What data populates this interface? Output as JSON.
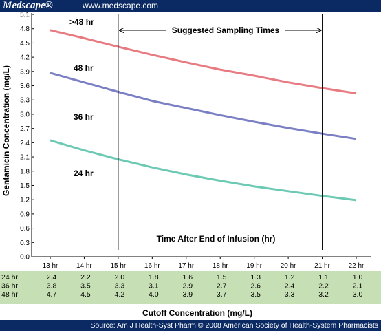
{
  "header": {
    "logo": "Medscape®",
    "site": "www.medscape.com"
  },
  "footer": {
    "source": "Source: Am J Health-Syst Pharm © 2008 American Society of Health-System Pharmacists"
  },
  "colors": {
    "header_bg": "#0b2a63",
    "table_bg": "#c7dfb4"
  },
  "chart_data": {
    "type": "line",
    "ylabel": "Gentamicin Concentration (mg/L)",
    "xlabel": "Cutoff Concentration (mg/L)",
    "inner_label": "Time After End of Infusion (hr)",
    "annotation": "Suggested Sampling Times",
    "sampling_window": [
      15,
      21
    ],
    "ylim": [
      0,
      5.1
    ],
    "yticks": [
      0.0,
      0.3,
      0.6,
      0.9,
      1.2,
      1.5,
      1.8,
      2.1,
      2.4,
      2.7,
      3.0,
      3.3,
      3.6,
      3.9,
      4.2,
      4.5,
      4.8,
      5.1
    ],
    "x": [
      13,
      14,
      15,
      16,
      17,
      18,
      19,
      20,
      21,
      22
    ],
    "xtick_labels": [
      "13 hr",
      "14 hr",
      "15 hr",
      "16 hr",
      "17 hr",
      "18 hr",
      "19 hr",
      "20 hr",
      "21 hr",
      "22 hr"
    ],
    "series": [
      {
        "name": ">48 hr",
        "color": "#e87a82",
        "values": [
          4.77,
          4.6,
          4.42,
          4.25,
          4.09,
          3.94,
          3.81,
          3.67,
          3.55,
          3.44
        ]
      },
      {
        "name": "48 hr",
        "color": "#7b7fc4",
        "values": [
          3.87,
          3.67,
          3.47,
          3.28,
          3.13,
          2.98,
          2.84,
          2.71,
          2.59,
          2.48
        ]
      },
      {
        "name": "36 hr",
        "color": "#6cc9b3",
        "values": [
          2.45,
          2.24,
          2.05,
          1.88,
          1.73,
          1.6,
          1.48,
          1.38,
          1.28,
          1.19
        ]
      }
    ],
    "table": {
      "rows": [
        {
          "label": "24 hr",
          "values": [
            "2.4",
            "2.2",
            "2.0",
            "1.8",
            "1.6",
            "1.5",
            "1.3",
            "1.2",
            "1.1",
            "1.0"
          ]
        },
        {
          "label": "36 hr",
          "values": [
            "3.8",
            "3.5",
            "3.3",
            "3.1",
            "2.9",
            "2.7",
            "2.6",
            "2.4",
            "2.2",
            "2.1"
          ]
        },
        {
          "label": "48 hr",
          "values": [
            "4.7",
            "4.5",
            "4.2",
            "4.0",
            "3.9",
            "3.7",
            "3.5",
            "3.3",
            "3.2",
            "3.0"
          ]
        }
      ]
    },
    "curve_labels": [
      ">48 hr",
      "48 hr",
      "36 hr",
      "24 hr"
    ]
  }
}
